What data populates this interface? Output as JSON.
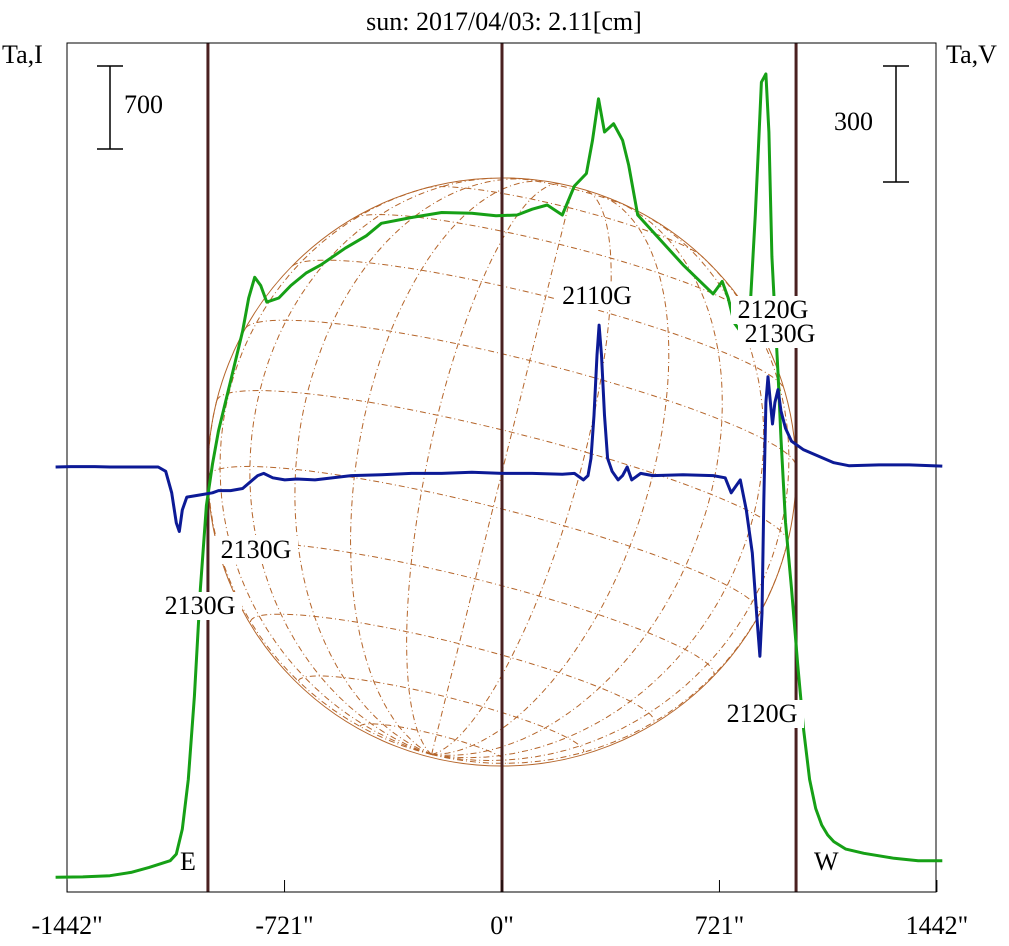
{
  "title": "sun: 2017/04/03: 2.11[cm]",
  "colors": {
    "title": "#1a237e",
    "intensity": "#16a016",
    "polarization": "#0c1a96",
    "limb_lines": "#4a2020",
    "disk": "#b5652a",
    "axis": "#000000"
  },
  "chart_data": {
    "type": "line",
    "title": "sun: 2017/04/03: 2.11[cm]",
    "xlabel": "",
    "left_axis_label": "Ta,I",
    "right_axis_label": "Ta,V",
    "xlim": [
      -1500,
      1460
    ],
    "x_ticks": [
      {
        "value": -1442,
        "label": "-1442\""
      },
      {
        "value": -721,
        "label": "-721\""
      },
      {
        "value": 0,
        "label": "0\""
      },
      {
        "value": 721,
        "label": "721\""
      },
      {
        "value": 1442,
        "label": "1442\""
      }
    ],
    "limb_markers": [
      {
        "value": -975,
        "label": "E"
      },
      {
        "value": 0,
        "label": ""
      },
      {
        "value": 975,
        "label": "W"
      }
    ],
    "scale_bars": [
      {
        "axis": "left",
        "label": "700"
      },
      {
        "axis": "right",
        "label": "300"
      }
    ],
    "grid": false,
    "disk_overlay": {
      "radius_arcsec": 975,
      "description": "heliographic grid"
    },
    "series": [
      {
        "name": "",
        "role": "intensity",
        "y_units": "relative",
        "points": [
          [
            -1480,
            0.02
          ],
          [
            -1390,
            0.025
          ],
          [
            -1300,
            0.04
          ],
          [
            -1230,
            0.08
          ],
          [
            -1170,
            0.14
          ],
          [
            -1100,
            0.22
          ],
          [
            -1080,
            0.3
          ],
          [
            -1060,
            0.6
          ],
          [
            -1040,
            1.2
          ],
          [
            -1020,
            2.2
          ],
          [
            -1000,
            3.5
          ],
          [
            -980,
            4.5
          ],
          [
            -960,
            5.0
          ],
          [
            -940,
            5.4
          ],
          [
            -900,
            6.0
          ],
          [
            -860,
            6.6
          ],
          [
            -840,
            7.0
          ],
          [
            -820,
            7.25
          ],
          [
            -800,
            7.15
          ],
          [
            -780,
            6.95
          ],
          [
            -740,
            7.0
          ],
          [
            -700,
            7.15
          ],
          [
            -650,
            7.3
          ],
          [
            -600,
            7.4
          ],
          [
            -520,
            7.6
          ],
          [
            -450,
            7.75
          ],
          [
            -400,
            7.9
          ],
          [
            -300,
            7.97
          ],
          [
            -200,
            8.03
          ],
          [
            -100,
            8.02
          ],
          [
            -20,
            7.99
          ],
          [
            50,
            8.0
          ],
          [
            100,
            8.07
          ],
          [
            150,
            8.12
          ],
          [
            200,
            8.0
          ],
          [
            240,
            8.35
          ],
          [
            280,
            8.5
          ],
          [
            300,
            8.9
          ],
          [
            320,
            9.4
          ],
          [
            340,
            9.0
          ],
          [
            370,
            9.1
          ],
          [
            400,
            8.9
          ],
          [
            420,
            8.6
          ],
          [
            450,
            8.0
          ],
          [
            500,
            7.8
          ],
          [
            600,
            7.4
          ],
          [
            700,
            7.05
          ],
          [
            730,
            7.2
          ],
          [
            750,
            7.0
          ],
          [
            770,
            6.7
          ],
          [
            800,
            6.55
          ],
          [
            820,
            6.7
          ],
          [
            840,
            8.0
          ],
          [
            850,
            8.8
          ],
          [
            860,
            9.6
          ],
          [
            875,
            9.7
          ],
          [
            885,
            9.0
          ],
          [
            895,
            7.5
          ],
          [
            905,
            6.8
          ],
          [
            915,
            6.1
          ],
          [
            925,
            5.3
          ],
          [
            940,
            4.3
          ],
          [
            960,
            3.5
          ],
          [
            980,
            2.6
          ],
          [
            1000,
            1.8
          ],
          [
            1020,
            1.2
          ],
          [
            1040,
            0.85
          ],
          [
            1060,
            0.65
          ],
          [
            1080,
            0.53
          ],
          [
            1100,
            0.45
          ],
          [
            1140,
            0.36
          ],
          [
            1200,
            0.31
          ],
          [
            1300,
            0.25
          ],
          [
            1380,
            0.22
          ],
          [
            1460,
            0.22
          ]
        ]
      },
      {
        "name": "",
        "role": "polarization",
        "y_units": "relative",
        "points": [
          [
            -1480,
            0.0
          ],
          [
            -1430,
            0.01
          ],
          [
            -1350,
            0.01
          ],
          [
            -1300,
            0.0
          ],
          [
            -1200,
            0.0
          ],
          [
            -1140,
            0.0
          ],
          [
            -1115,
            -0.1
          ],
          [
            -1095,
            -0.6
          ],
          [
            -1080,
            -1.3
          ],
          [
            -1070,
            -1.5
          ],
          [
            -1060,
            -1.0
          ],
          [
            -1045,
            -0.7
          ],
          [
            -1000,
            -0.65
          ],
          [
            -960,
            -0.6
          ],
          [
            -940,
            -0.55
          ],
          [
            -900,
            -0.55
          ],
          [
            -860,
            -0.5
          ],
          [
            -810,
            -0.2
          ],
          [
            -790,
            -0.15
          ],
          [
            -760,
            -0.25
          ],
          [
            -720,
            -0.3
          ],
          [
            -680,
            -0.28
          ],
          [
            -620,
            -0.3
          ],
          [
            -560,
            -0.25
          ],
          [
            -500,
            -0.2
          ],
          [
            -400,
            -0.18
          ],
          [
            -300,
            -0.15
          ],
          [
            -200,
            -0.15
          ],
          [
            -100,
            -0.12
          ],
          [
            0,
            -0.15
          ],
          [
            100,
            -0.15
          ],
          [
            200,
            -0.17
          ],
          [
            240,
            -0.15
          ],
          [
            270,
            -0.3
          ],
          [
            285,
            -0.2
          ],
          [
            295,
            0.2
          ],
          [
            305,
            1.2
          ],
          [
            315,
            2.6
          ],
          [
            322,
            3.3
          ],
          [
            330,
            2.6
          ],
          [
            340,
            1.2
          ],
          [
            350,
            0.2
          ],
          [
            365,
            -0.1
          ],
          [
            385,
            -0.3
          ],
          [
            400,
            -0.2
          ],
          [
            415,
            0.0
          ],
          [
            430,
            -0.3
          ],
          [
            460,
            -0.15
          ],
          [
            500,
            -0.2
          ],
          [
            600,
            -0.18
          ],
          [
            700,
            -0.2
          ],
          [
            740,
            -0.25
          ],
          [
            760,
            -0.6
          ],
          [
            790,
            -0.3
          ],
          [
            810,
            -1.0
          ],
          [
            830,
            -2.0
          ],
          [
            845,
            -3.5
          ],
          [
            855,
            -4.4
          ],
          [
            862,
            -3.4
          ],
          [
            868,
            -0.8
          ],
          [
            875,
            1.5
          ],
          [
            882,
            2.1
          ],
          [
            890,
            1.5
          ],
          [
            897,
            1.0
          ],
          [
            905,
            1.5
          ],
          [
            915,
            1.8
          ],
          [
            925,
            1.3
          ],
          [
            940,
            0.9
          ],
          [
            960,
            0.6
          ],
          [
            1000,
            0.4
          ],
          [
            1050,
            0.25
          ],
          [
            1100,
            0.1
          ],
          [
            1150,
            0.03
          ],
          [
            1250,
            0.05
          ],
          [
            1350,
            0.05
          ],
          [
            1460,
            0.02
          ]
        ]
      }
    ],
    "annotations": [
      {
        "text": "2130G",
        "series": "polarization",
        "x": -1000
      },
      {
        "text": "2130G",
        "series": "polarization",
        "x": -1070
      },
      {
        "text": "2110G",
        "series": "intensity",
        "x": 320
      },
      {
        "text": "2120G",
        "series": "intensity",
        "x": 880
      },
      {
        "text": "2130G",
        "series": "polarization",
        "x": 885
      },
      {
        "text": "2120G",
        "series": "polarization",
        "x": 855
      }
    ]
  }
}
